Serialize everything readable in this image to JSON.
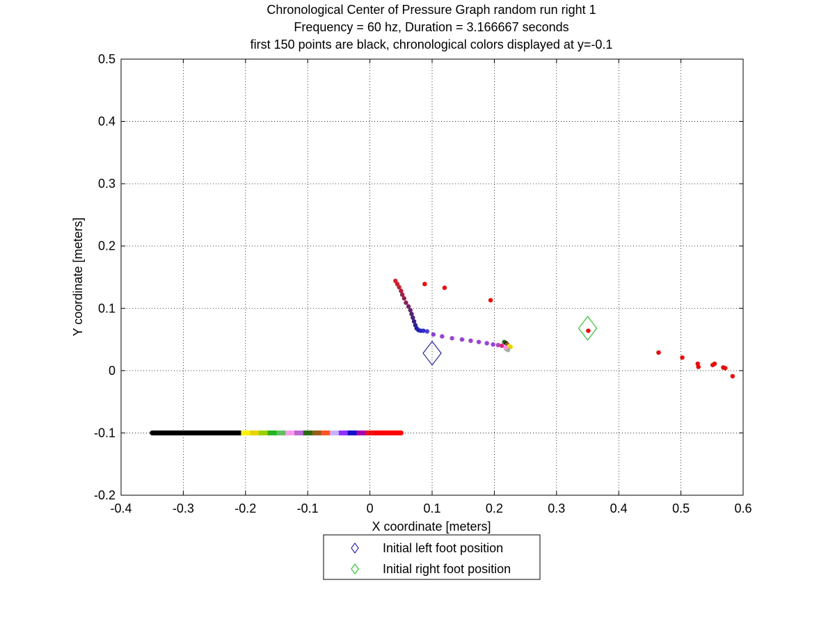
{
  "chart_data": {
    "type": "scatter",
    "title_lines": [
      "Chronological Center of Pressure Graph random run right 1",
      "Frequency = 60 hz, Duration = 3.166667 seconds",
      "first 150 points are black, chronological colors displayed at y=-0.1"
    ],
    "xlabel": "X coordinate [meters]",
    "ylabel": "Y coordinate [meters]",
    "xlim": [
      -0.4,
      0.6
    ],
    "ylim": [
      -0.2,
      0.5
    ],
    "xticks": [
      -0.4,
      -0.3,
      -0.2,
      -0.1,
      0,
      0.1,
      0.2,
      0.3,
      0.4,
      0.5,
      0.6
    ],
    "xtick_labels": [
      "-0.4",
      "-0.3",
      "-0.2",
      "-0.1",
      "0",
      "0.1",
      "0.2",
      "0.3",
      "0.4",
      "0.5",
      "0.6"
    ],
    "yticks": [
      -0.2,
      -0.1,
      0,
      0.1,
      0.2,
      0.3,
      0.4,
      0.5
    ],
    "ytick_labels": [
      "-0.2",
      "-0.1",
      "0",
      "0.1",
      "0.2",
      "0.3",
      "0.4",
      "0.5"
    ],
    "grid": true,
    "legend_position": "below",
    "legend": [
      {
        "label": "Initial left foot position",
        "marker": "diamond",
        "color": "#0000cc"
      },
      {
        "label": "Initial right foot position",
        "marker": "diamond",
        "color": "#00cc00"
      }
    ],
    "foot_markers": [
      {
        "name": "Initial left foot position",
        "x": 0.1,
        "y": 0.028,
        "color": "#0000cc"
      },
      {
        "name": "Initial right foot position",
        "x": 0.35,
        "y": 0.068,
        "color": "#00cc00"
      }
    ],
    "timeline": {
      "y": -0.1,
      "x_start": -0.35,
      "x_end": 0.05,
      "colors": [
        "#000000",
        "#000000",
        "#000000",
        "#000000",
        "#000000",
        "#000000",
        "#000000",
        "#000000",
        "#000000",
        "#000000",
        "#fff200",
        "#e8d300",
        "#98d000",
        "#22b422",
        "#60c060",
        "#ff99ee",
        "#b866d8",
        "#2a6a10",
        "#9a5a18",
        "#ff5522",
        "#c8b0ff",
        "#9030ff",
        "#1010c8",
        "#aa00aa",
        "#ee1111",
        "#ff0000",
        "#ff0000",
        "#ff0000"
      ]
    },
    "series": [
      {
        "points": [
          [
            0.041,
            0.144,
            "#e01c2c"
          ],
          [
            0.044,
            0.139,
            "#d01c30"
          ],
          [
            0.047,
            0.134,
            "#c81c30"
          ],
          [
            0.05,
            0.128,
            "#b81c38"
          ],
          [
            0.052,
            0.122,
            "#a81c44"
          ],
          [
            0.055,
            0.116,
            "#982050"
          ],
          [
            0.058,
            0.109,
            "#8a2058"
          ],
          [
            0.062,
            0.103,
            "#7a2064"
          ],
          [
            0.065,
            0.097,
            "#6a2070"
          ],
          [
            0.067,
            0.091,
            "#5a2078"
          ],
          [
            0.069,
            0.085,
            "#4a2084"
          ],
          [
            0.071,
            0.079,
            "#3a208c"
          ],
          [
            0.073,
            0.073,
            "#2a2098"
          ],
          [
            0.075,
            0.068,
            "#2020a8"
          ],
          [
            0.078,
            0.065,
            "#2020b8"
          ],
          [
            0.082,
            0.064,
            "#2424c4"
          ],
          [
            0.086,
            0.064,
            "#3030c8"
          ],
          [
            0.092,
            0.063,
            "#5040d0"
          ],
          [
            0.102,
            0.058,
            "#8a40d8"
          ],
          [
            0.116,
            0.055,
            "#9a40e0"
          ],
          [
            0.132,
            0.052,
            "#9a40e0"
          ],
          [
            0.148,
            0.05,
            "#9a40e0"
          ],
          [
            0.162,
            0.048,
            "#9a40e0"
          ],
          [
            0.175,
            0.046,
            "#9a40e0"
          ],
          [
            0.188,
            0.044,
            "#9a40e0"
          ],
          [
            0.198,
            0.042,
            "#9a40e0"
          ],
          [
            0.206,
            0.041,
            "#c040c0"
          ],
          [
            0.212,
            0.04,
            "#e02080"
          ],
          [
            0.216,
            0.046,
            "#2a6a10"
          ],
          [
            0.219,
            0.044,
            "#222222"
          ],
          [
            0.221,
            0.042,
            "#9a5a18"
          ],
          [
            0.224,
            0.039,
            "#fff200"
          ],
          [
            0.226,
            0.038,
            "#e8d300"
          ],
          [
            0.219,
            0.035,
            "#60c060"
          ],
          [
            0.222,
            0.033,
            "#aaaaaa"
          ],
          [
            0.218,
            0.037,
            "#ff99ee"
          ],
          [
            0.088,
            0.139,
            "#ff0000"
          ],
          [
            0.12,
            0.133,
            "#ff0000"
          ],
          [
            0.194,
            0.113,
            "#ff0000"
          ],
          [
            0.351,
            0.064,
            "#ff0000"
          ],
          [
            0.464,
            0.029,
            "#ff0000"
          ],
          [
            0.502,
            0.021,
            "#ff0000"
          ],
          [
            0.527,
            0.011,
            "#ff0000"
          ],
          [
            0.528,
            0.006,
            "#ff0000"
          ],
          [
            0.551,
            0.009,
            "#ff0000"
          ],
          [
            0.554,
            0.011,
            "#ff0000"
          ],
          [
            0.568,
            0.005,
            "#ff0000"
          ],
          [
            0.571,
            0.004,
            "#ff0000"
          ],
          [
            0.583,
            -0.009,
            "#ff0000"
          ]
        ]
      }
    ]
  }
}
